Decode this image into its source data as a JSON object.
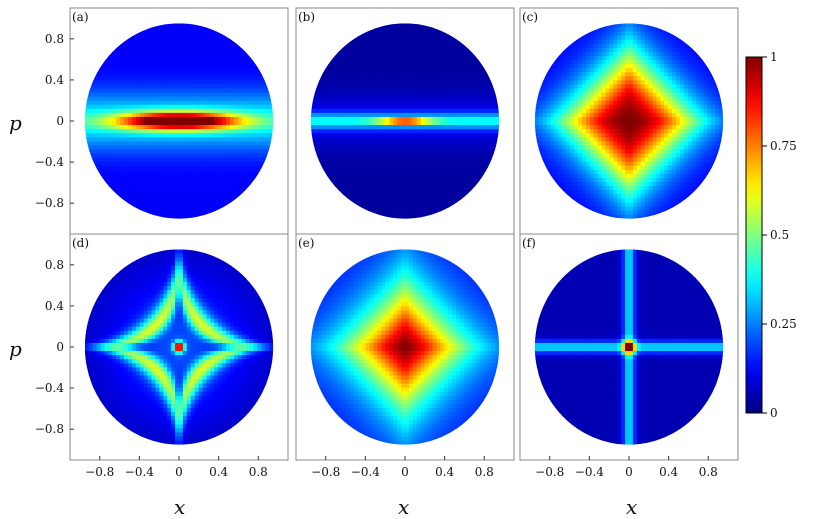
{
  "chart_data": {
    "type": "heatmap",
    "title": "",
    "xlabel": "x",
    "ylabel": "p",
    "xlim": [
      -1.1,
      1.1
    ],
    "ylim": [
      -1.1,
      1.1
    ],
    "x_ticks": [
      "−0.8",
      "−0.4",
      "0",
      "0.4",
      "0.8"
    ],
    "x_tick_values": [
      -0.8,
      -0.4,
      0,
      0.4,
      0.8
    ],
    "y_ticks": [
      "0.8",
      "0.4",
      "0",
      "−0.4",
      "−0.8"
    ],
    "y_tick_values": [
      0.8,
      0.4,
      0,
      -0.4,
      -0.8
    ],
    "domain_radius": 0.95,
    "grid": false,
    "colormap": "jet",
    "colorbar": {
      "min": 0,
      "max": 1,
      "ticks": [
        "0",
        "0.25",
        "0.5",
        "0.75",
        "1"
      ],
      "tick_values": [
        0,
        0.25,
        0.5,
        0.75,
        1
      ],
      "placement": "right"
    },
    "panels": [
      {
        "label": "(a)",
        "pattern": "horizontal-ellipse",
        "peak": 1.0,
        "peak_at": [
          0,
          0
        ]
      },
      {
        "label": "(b)",
        "pattern": "thin-horizontal-line",
        "peak": 1.0,
        "peak_at": [
          0,
          0
        ]
      },
      {
        "label": "(c)",
        "pattern": "diamond",
        "peak": 1.0,
        "peak_at": [
          0,
          0
        ]
      },
      {
        "label": "(d)",
        "pattern": "star",
        "peak": 1.0,
        "peak_at": [
          0,
          0
        ]
      },
      {
        "label": "(e)",
        "pattern": "diamond-broad",
        "peak": 1.0,
        "peak_at": [
          0,
          0
        ]
      },
      {
        "label": "(f)",
        "pattern": "cross",
        "peak": 1.0,
        "peak_at": [
          0,
          0
        ]
      }
    ]
  }
}
